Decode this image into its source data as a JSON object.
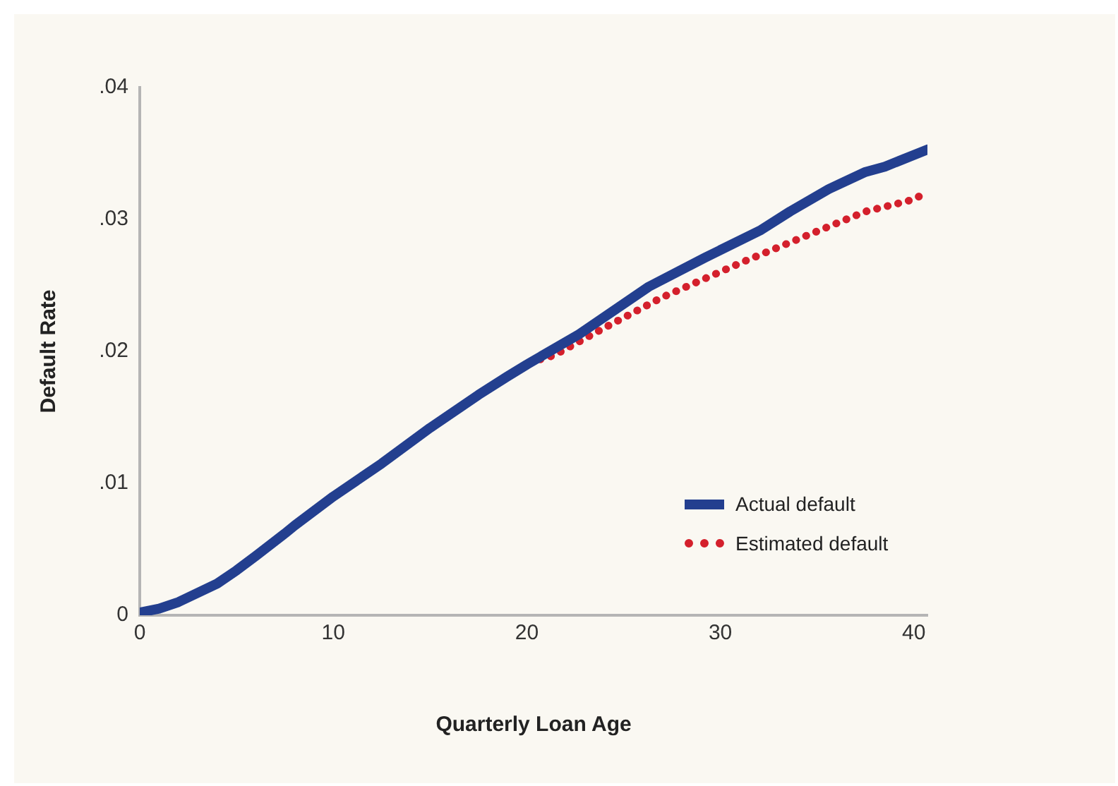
{
  "chart_data": {
    "type": "line",
    "xlabel": "Quarterly Loan Age",
    "ylabel": "Default Rate",
    "xlim": [
      0,
      40.7
    ],
    "xticks": [
      0,
      10,
      20,
      30,
      40
    ],
    "ylim": [
      0,
      0.04
    ],
    "yticks": [
      {
        "value": 0,
        "label": "0"
      },
      {
        "value": 0.01,
        "label": ".01"
      },
      {
        "value": 0.02,
        "label": ".02"
      },
      {
        "value": 0.03,
        "label": ".03"
      },
      {
        "value": 0.04,
        "label": ".04"
      }
    ],
    "grid": false,
    "legend": "right",
    "marker": "none",
    "series": [
      {
        "name": "Actual default",
        "color": "#233f8f",
        "line_style": "solid",
        "x": [
          0,
          1,
          2,
          4,
          5,
          6,
          7.5,
          8,
          10,
          12.5,
          15,
          17.5,
          19,
          20,
          22.7,
          26.3,
          29.2,
          32.1,
          33.6,
          35.6,
          37.5,
          38.5,
          40.7
        ],
        "values": [
          0.0002,
          0.0005,
          0.001,
          0.0024,
          0.0034,
          0.0045,
          0.0062,
          0.0068,
          0.009,
          0.0115,
          0.0142,
          0.0167,
          0.0181,
          0.019,
          0.0213,
          0.0249,
          0.0271,
          0.0292,
          0.0306,
          0.0323,
          0.0336,
          0.034,
          0.0353
        ]
      },
      {
        "name": "Estimated default",
        "color": "#d4202c",
        "line_style": "dotted",
        "x": [
          20.7,
          21.4,
          23.9,
          27,
          31.2,
          34.5,
          37.5,
          39.7,
          40.7
        ],
        "values": [
          0.0194,
          0.0197,
          0.0217,
          0.0241,
          0.0268,
          0.0288,
          0.0306,
          0.0314,
          0.032
        ]
      }
    ]
  }
}
